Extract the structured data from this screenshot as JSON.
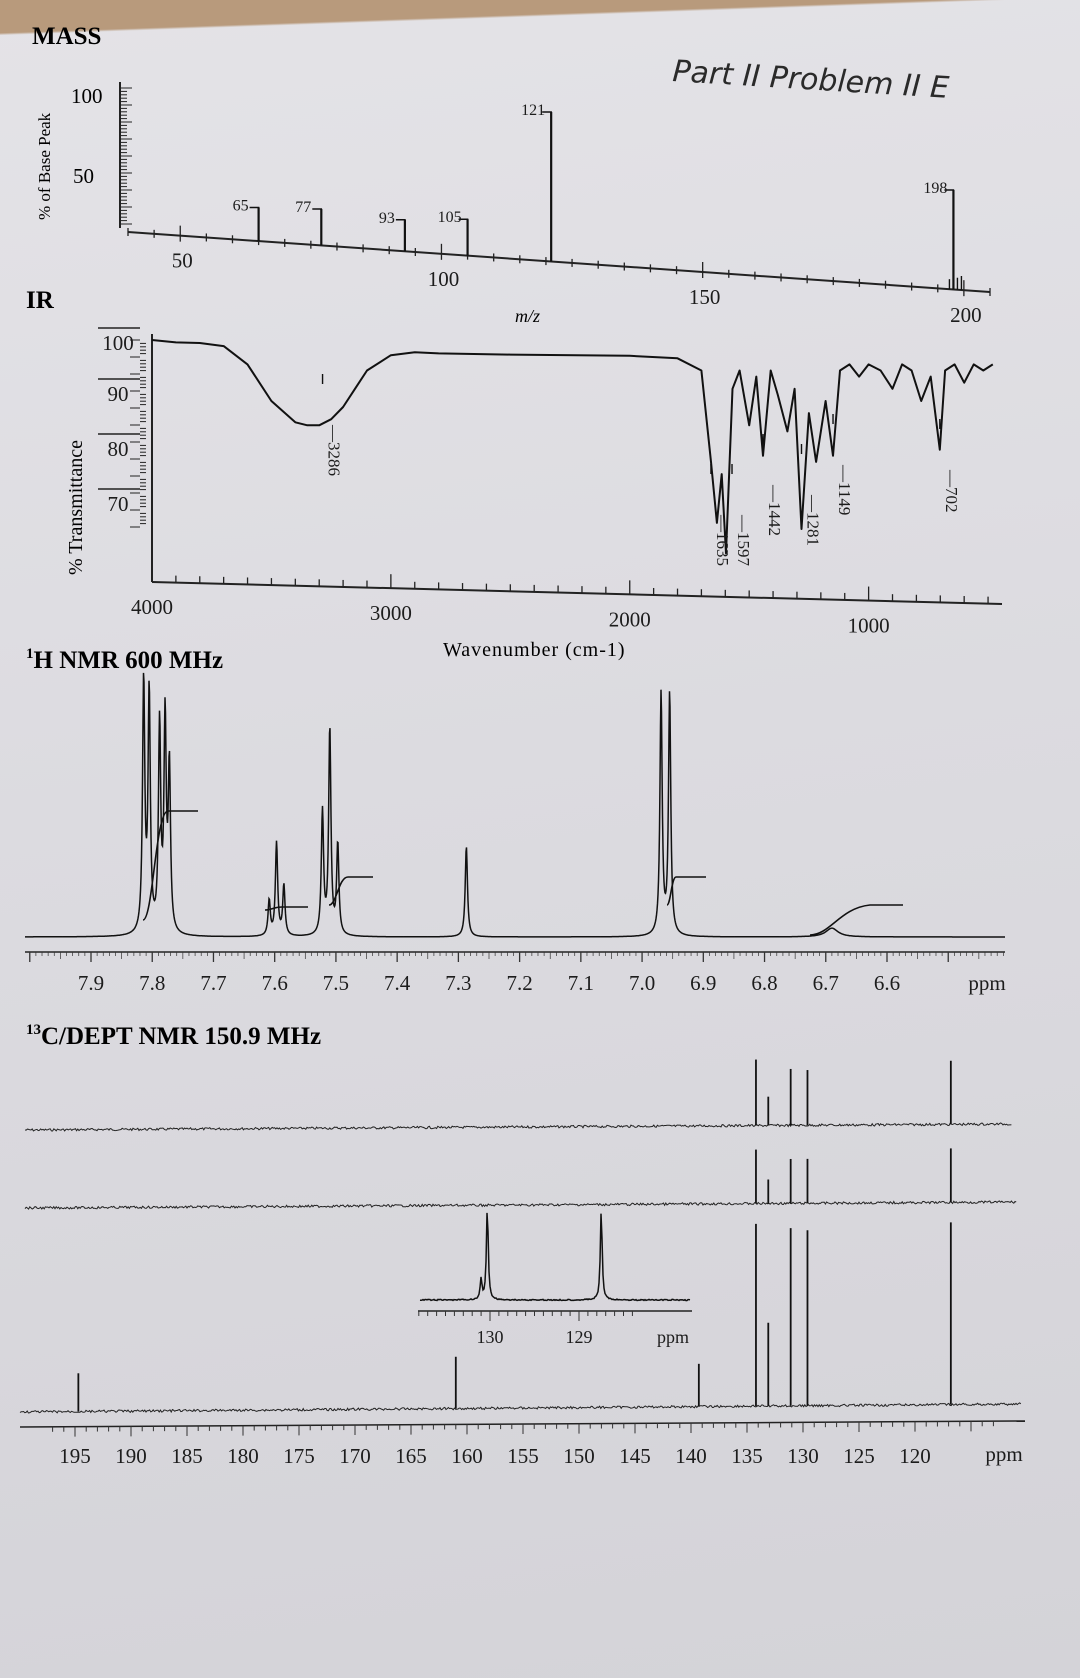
{
  "handwritten_note": "Part II Problem II E",
  "chart_data": [
    {
      "type": "bar",
      "panel": "mass",
      "title": "MASS",
      "ylabel": "% of Base Peak",
      "xlabel": "m/z",
      "xlim": [
        40,
        205
      ],
      "ylim": [
        0,
        100
      ],
      "yticks": [
        "100",
        "50"
      ],
      "xticks": [
        50,
        100,
        150,
        200
      ],
      "peaks": [
        {
          "mz": 65,
          "value": 8,
          "label": "65"
        },
        {
          "mz": 77,
          "value": 12,
          "label": "77"
        },
        {
          "mz": 93,
          "value": 5,
          "label": "93"
        },
        {
          "mz": 105,
          "value": 12,
          "label": "105"
        },
        {
          "mz": 121,
          "value": 100,
          "label": "121"
        },
        {
          "mz": 198,
          "value": 60,
          "label": "198"
        }
      ]
    },
    {
      "type": "line",
      "panel": "ir",
      "title": "IR",
      "ylabel": "% Transmittance",
      "xlabel": "Wavenumber (cm-1)",
      "xlim": [
        4000,
        450
      ],
      "ylim": [
        58,
        100
      ],
      "yticks": [
        "100",
        "90",
        "80",
        "70"
      ],
      "xticks": [
        4000,
        3000,
        2000,
        1000
      ],
      "x": [
        4000,
        3900,
        3800,
        3700,
        3600,
        3500,
        3400,
        3350,
        3300,
        3250,
        3200,
        3150,
        3100,
        3000,
        2900,
        2800,
        2500,
        2000,
        1800,
        1700,
        1660,
        1635,
        1615,
        1597,
        1570,
        1540,
        1500,
        1470,
        1442,
        1410,
        1380,
        1340,
        1310,
        1281,
        1250,
        1220,
        1180,
        1149,
        1120,
        1080,
        1040,
        1000,
        950,
        900,
        860,
        820,
        780,
        740,
        702,
        680,
        640,
        600,
        560,
        520,
        480
      ],
      "values": [
        100,
        99.6,
        99.5,
        99,
        96,
        90,
        86.5,
        86,
        86,
        87,
        89,
        92,
        95,
        97.5,
        98,
        97.8,
        97.6,
        97.4,
        97,
        95,
        80,
        70,
        78,
        65,
        92,
        95,
        86,
        94,
        81,
        95,
        91,
        85,
        92,
        69,
        88,
        80,
        90,
        81,
        95,
        96,
        94,
        96,
        95,
        92,
        96,
        95,
        90,
        94,
        82,
        95,
        96,
        93,
        96,
        95,
        96
      ],
      "annotations": [
        "3286",
        "1635",
        "1597",
        "1442",
        "1281",
        "1149",
        "702"
      ]
    },
    {
      "type": "line",
      "panel": "hnmr",
      "title": "1H NMR 600 MHz",
      "xlabel": "ppm",
      "xlim": [
        8.0,
        5.4
      ],
      "xticks": [
        "7.9",
        "7.8",
        "7.7",
        "7.6",
        "7.5",
        "7.4",
        "7.3",
        "7.2",
        "7.1",
        "7.0",
        "6.9",
        "6.8",
        "6.7",
        "6.6"
      ],
      "peaks": [
        {
          "ppm": 7.814,
          "height": 1.0
        },
        {
          "ppm": 7.805,
          "height": 0.95
        },
        {
          "ppm": 7.788,
          "height": 0.82
        },
        {
          "ppm": 7.779,
          "height": 0.84
        },
        {
          "ppm": 7.772,
          "height": 0.65
        },
        {
          "ppm": 7.609,
          "height": 0.14
        },
        {
          "ppm": 7.597,
          "height": 0.37
        },
        {
          "ppm": 7.585,
          "height": 0.2
        },
        {
          "ppm": 7.522,
          "height": 0.49
        },
        {
          "ppm": 7.51,
          "height": 0.82
        },
        {
          "ppm": 7.497,
          "height": 0.36
        },
        {
          "ppm": 7.287,
          "height": 0.36
        },
        {
          "ppm": 6.969,
          "height": 0.96
        },
        {
          "ppm": 6.955,
          "height": 0.96
        },
        {
          "ppm": 6.69,
          "height": 0.035
        }
      ]
    },
    {
      "type": "line",
      "panel": "cnmr",
      "title": "13C/DEPT NMR 150.9 MHz",
      "xlabel": "ppm",
      "xlim": [
        197,
        113
      ],
      "xticks": [
        "195",
        "190",
        "185",
        "180",
        "175",
        "170",
        "165",
        "160",
        "155",
        "150",
        "145",
        "140",
        "135",
        "130",
        "125",
        "120"
      ],
      "peaks": [
        {
          "ppm": 194.7,
          "height": 0.17
        },
        {
          "ppm": 161.0,
          "height": 0.23
        },
        {
          "ppm": 139.3,
          "height": 0.19
        },
        {
          "ppm": 134.2,
          "height": 0.81
        },
        {
          "ppm": 133.1,
          "height": 0.37
        },
        {
          "ppm": 131.1,
          "height": 0.79
        },
        {
          "ppm": 129.6,
          "height": 0.78
        },
        {
          "ppm": 116.8,
          "height": 0.81
        }
      ],
      "dept135_peaks": [
        {
          "ppm": 134.2,
          "height": 0.45
        },
        {
          "ppm": 133.1,
          "height": 0.2
        },
        {
          "ppm": 131.1,
          "height": 0.37
        },
        {
          "ppm": 129.6,
          "height": 0.37
        },
        {
          "ppm": 116.8,
          "height": 0.45
        }
      ],
      "dept90_peaks": [
        {
          "ppm": 134.2,
          "height": 0.55
        },
        {
          "ppm": 133.1,
          "height": 0.24
        },
        {
          "ppm": 131.1,
          "height": 0.47
        },
        {
          "ppm": 129.6,
          "height": 0.46
        },
        {
          "ppm": 116.8,
          "height": 0.53
        }
      ],
      "inset": {
        "xlim": [
          130.8,
          128.5
        ],
        "xticks": [
          "130",
          "129",
          "ppm"
        ],
        "peaks": [
          {
            "ppm": 130.1,
            "height": 0.22
          },
          {
            "ppm": 130.03,
            "height": 1.0
          },
          {
            "ppm": 128.75,
            "height": 0.96
          }
        ]
      }
    }
  ]
}
